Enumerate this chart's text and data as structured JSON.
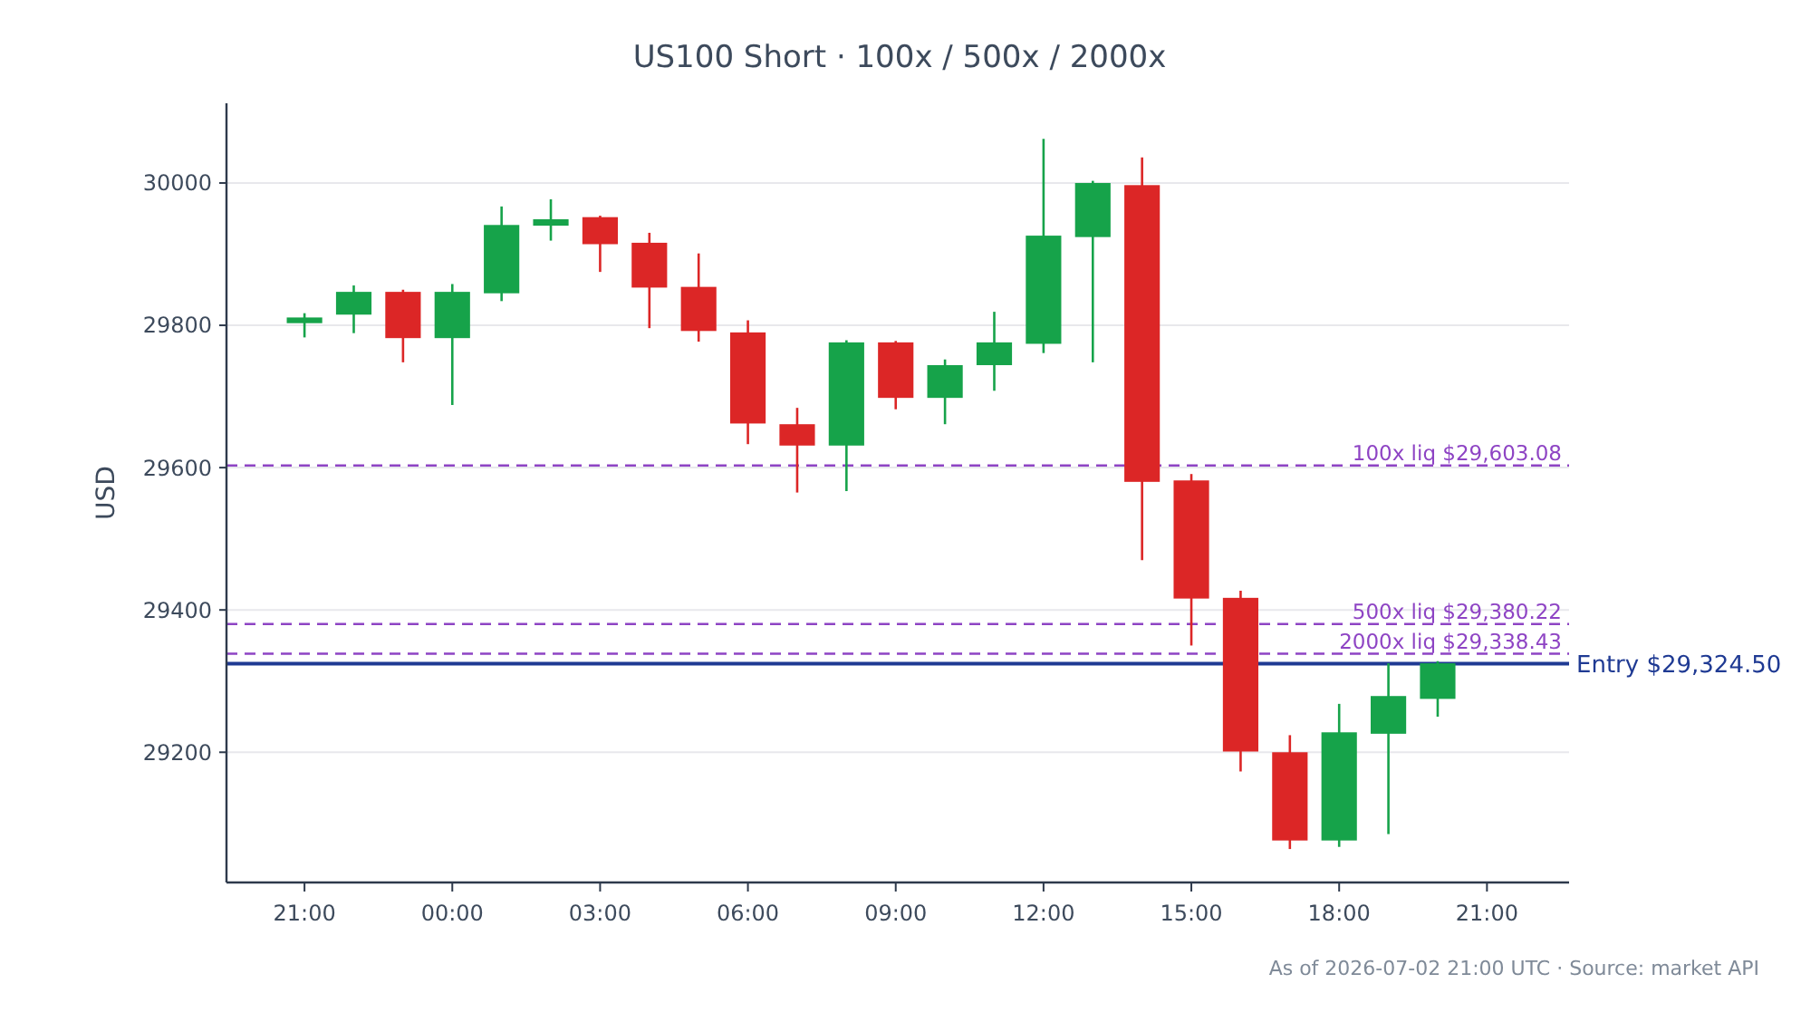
{
  "chart_data": {
    "type": "candlestick",
    "title": "US100 Short · 100x / 500x / 2000x",
    "ylabel": "USD",
    "x": [
      "2026-07-01T21:00",
      "2026-07-01T22:00",
      "2026-07-01T23:00",
      "2026-07-02T00:00",
      "2026-07-02T01:00",
      "2026-07-02T02:00",
      "2026-07-02T03:00",
      "2026-07-02T04:00",
      "2026-07-02T05:00",
      "2026-07-02T06:00",
      "2026-07-02T07:00",
      "2026-07-02T08:00",
      "2026-07-02T09:00",
      "2026-07-02T10:00",
      "2026-07-02T11:00",
      "2026-07-02T12:00",
      "2026-07-02T13:00",
      "2026-07-02T14:00",
      "2026-07-02T15:00",
      "2026-07-02T16:00",
      "2026-07-02T17:00",
      "2026-07-02T18:00",
      "2026-07-02T19:00",
      "2026-07-02T20:00"
    ],
    "ohlc": [
      [
        29803,
        29817,
        29783,
        29811
      ],
      [
        29815,
        29856,
        29789,
        29847
      ],
      [
        29847,
        29850,
        29748,
        29782
      ],
      [
        29782,
        29858,
        29688,
        29847
      ],
      [
        29845,
        29967,
        29834,
        29941
      ],
      [
        29940,
        29977,
        29919,
        29949
      ],
      [
        29952,
        29954,
        29875,
        29914
      ],
      [
        29916,
        29930,
        29796,
        29853
      ],
      [
        29854,
        29901,
        29777,
        29792
      ],
      [
        29790,
        29807,
        29633,
        29662
      ],
      [
        29661,
        29684,
        29565,
        29631
      ],
      [
        29631,
        29779,
        29567,
        29776
      ],
      [
        29776,
        29778,
        29682,
        29698
      ],
      [
        29698,
        29752,
        29661,
        29744
      ],
      [
        29744,
        29819,
        29708,
        29776
      ],
      [
        29774,
        30062,
        29761,
        29926
      ],
      [
        29924,
        30003,
        29748,
        30000
      ],
      [
        29997,
        30036,
        29470,
        29580
      ],
      [
        29582,
        29591,
        29350,
        29416
      ],
      [
        29417,
        29427,
        29173,
        29201
      ],
      [
        29200,
        29224,
        29064,
        29076
      ],
      [
        29076,
        29268,
        29067,
        29228
      ],
      [
        29226,
        29325,
        29085,
        29279
      ],
      [
        29275,
        29328,
        29250,
        29325
      ]
    ],
    "colors": [
      "#16a34a",
      "#16a34a",
      "#dc2626",
      "#16a34a",
      "#16a34a",
      "#16a34a",
      "#dc2626",
      "#dc2626",
      "#dc2626",
      "#dc2626",
      "#dc2626",
      "#16a34a",
      "#dc2626",
      "#16a34a",
      "#16a34a",
      "#16a34a",
      "#16a34a",
      "#dc2626",
      "#dc2626",
      "#dc2626",
      "#dc2626",
      "#16a34a",
      "#16a34a",
      "#16a34a"
    ],
    "xlim": [
      "2026-07-01T19:25",
      "2026-07-02T22:40"
    ],
    "xticks": [
      {
        "value": "2026-07-01T21:00",
        "label": "21:00"
      },
      {
        "value": "2026-07-02T00:00",
        "label": "00:00"
      },
      {
        "value": "2026-07-02T03:00",
        "label": "03:00"
      },
      {
        "value": "2026-07-02T06:00",
        "label": "06:00"
      },
      {
        "value": "2026-07-02T09:00",
        "label": "09:00"
      },
      {
        "value": "2026-07-02T12:00",
        "label": "12:00"
      },
      {
        "value": "2026-07-02T15:00",
        "label": "15:00"
      },
      {
        "value": "2026-07-02T18:00",
        "label": "18:00"
      },
      {
        "value": "2026-07-02T21:00",
        "label": "21:00"
      }
    ],
    "ylim": [
      29017,
      30112
    ],
    "yticks": [
      29200,
      29400,
      29600,
      29800,
      30000
    ],
    "grid": "y",
    "ref_lines": [
      {
        "axis": "y",
        "value": 29603.08,
        "label": "100x liq $29,603.08",
        "color": "#8e44c4",
        "line_style": "dashed"
      },
      {
        "axis": "y",
        "value": 29380.22,
        "label": "500x liq $29,380.22",
        "color": "#8e44c4",
        "line_style": "dashed"
      },
      {
        "axis": "y",
        "value": 29338.43,
        "label": "2000x liq $29,338.43",
        "color": "#8e44c4",
        "line_style": "dashed"
      },
      {
        "axis": "y",
        "value": 29324.5,
        "label": "Entry $29,324.50",
        "color": "#1f3a93",
        "line_style": "solid"
      }
    ],
    "annotations": [
      "As of 2026-07-02 21:00 UTC · Source: market API"
    ]
  }
}
